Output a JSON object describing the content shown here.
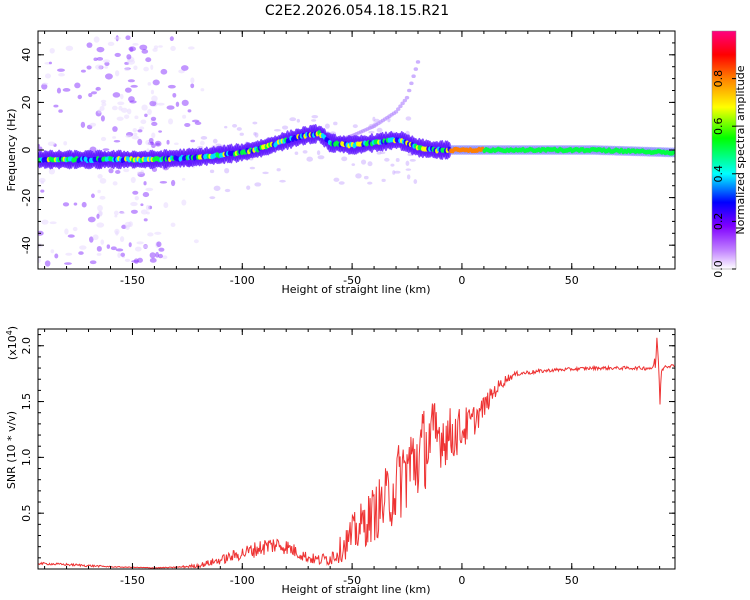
{
  "chart_data": [
    {
      "type": "heatmap",
      "title": "C2E2.2026.054.18.15.R21",
      "xlabel": "Height of straight line (km)",
      "ylabel": "Frequency (Hz)",
      "xlim": [
        -193,
        97
      ],
      "ylim": [
        -50,
        50
      ],
      "xticks": [
        -150,
        -100,
        -50,
        0,
        50
      ],
      "yticks": [
        -40,
        -20,
        0,
        20,
        40
      ],
      "ridge": {
        "x": [
          -193,
          -180,
          -160,
          -140,
          -120,
          -100,
          -90,
          -80,
          -72,
          -65,
          -60,
          -50,
          -40,
          -32,
          -28,
          -20,
          -12,
          -6,
          0,
          10,
          30,
          60,
          95
        ],
        "freq": [
          -4,
          -4,
          -4,
          -4,
          -3,
          -1,
          1,
          4,
          6,
          7,
          3,
          2,
          3,
          4,
          4,
          1,
          0,
          0,
          0,
          0,
          0,
          0,
          -1
        ]
      },
      "side_branch": {
        "x": [
          -60,
          -50,
          -40,
          -30,
          -25,
          -20
        ],
        "freq": [
          3,
          6,
          10,
          16,
          22,
          37
        ]
      },
      "colorbar": {
        "label": "Normalized spectral amplitude",
        "range": [
          0.0,
          1.0
        ],
        "ticks": [
          "0.0",
          "0.2",
          "0.4",
          "0.6",
          "0.8"
        ],
        "colors": [
          "#ffffff",
          "#8000ff",
          "#0000ff",
          "#00ffff",
          "#00ff00",
          "#ffff00",
          "#ff8000",
          "#ff0000",
          "#ff0080"
        ]
      }
    },
    {
      "type": "line",
      "xlabel": "Height of straight line (km)",
      "ylabel": "SNR (10 * v/v)",
      "multiplier": "(x10",
      "multiplier_exp": "4",
      "multiplier_close": ")",
      "xlim": [
        -193,
        97
      ],
      "ylim": [
        0,
        2.15
      ],
      "xticks": [
        -150,
        -100,
        -50,
        0,
        50
      ],
      "yticks": [
        0.5,
        1.0,
        1.5,
        2.0
      ],
      "ytick_labels": [
        "0.5",
        "1.0",
        "1.5",
        "2.0"
      ],
      "color": "#ee3333",
      "x": [
        -193,
        -180,
        -170,
        -160,
        -150,
        -140,
        -130,
        -120,
        -110,
        -100,
        -95,
        -90,
        -85,
        -80,
        -75,
        -70,
        -65,
        -60,
        -55,
        -50,
        -45,
        -40,
        -35,
        -30,
        -25,
        -20,
        -15,
        -10,
        -5,
        0,
        5,
        10,
        15,
        20,
        25,
        30,
        40,
        50,
        60,
        70,
        80,
        85,
        88,
        89,
        90,
        91,
        92,
        95,
        97
      ],
      "y": [
        0.05,
        0.04,
        0.03,
        0.02,
        0.015,
        0.01,
        0.015,
        0.03,
        0.08,
        0.14,
        0.17,
        0.2,
        0.22,
        0.2,
        0.15,
        0.1,
        0.08,
        0.1,
        0.18,
        0.3,
        0.4,
        0.5,
        0.6,
        0.75,
        0.9,
        1.0,
        1.15,
        1.2,
        1.2,
        1.25,
        1.32,
        1.45,
        1.6,
        1.7,
        1.75,
        1.76,
        1.78,
        1.79,
        1.8,
        1.8,
        1.8,
        1.8,
        1.82,
        2.1,
        1.5,
        1.8,
        1.82,
        1.82,
        1.82
      ],
      "noise_amp": [
        0.01,
        0.01,
        0.01,
        0.005,
        0.003,
        0.003,
        0.005,
        0.02,
        0.04,
        0.06,
        0.07,
        0.08,
        0.08,
        0.07,
        0.06,
        0.05,
        0.05,
        0.07,
        0.12,
        0.18,
        0.22,
        0.25,
        0.3,
        0.35,
        0.4,
        0.4,
        0.38,
        0.3,
        0.25,
        0.2,
        0.15,
        0.1,
        0.07,
        0.04,
        0.02,
        0.02,
        0.015,
        0.015,
        0.015,
        0.015,
        0.015,
        0.02,
        0.08,
        0.1,
        0.1,
        0.06,
        0.02,
        0.015,
        0.015
      ]
    }
  ]
}
